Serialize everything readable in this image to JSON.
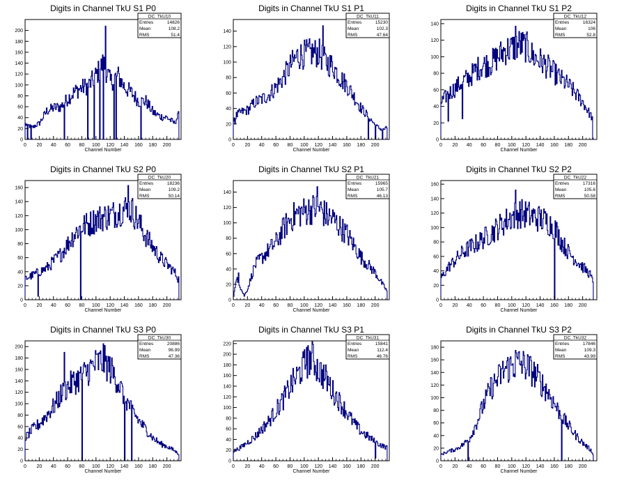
{
  "chart_data": [
    {
      "type": "histogram",
      "title": "Digits in Channel TkU S1 P0",
      "xlabel": "Channel Number",
      "ylabel": "",
      "xlim": [
        0,
        220
      ],
      "ylim": [
        0,
        220
      ],
      "xticks": [
        0,
        20,
        40,
        60,
        80,
        100,
        120,
        140,
        160,
        180,
        200
      ],
      "yticks": [
        0,
        20,
        40,
        60,
        80,
        100,
        120,
        140,
        160,
        180,
        200
      ],
      "stats": {
        "name": "DC_TkU10",
        "rows": [
          [
            "Entries",
            "14826"
          ],
          [
            "Mean",
            "108.2"
          ],
          [
            "RMS",
            "51.4"
          ]
        ]
      },
      "x": [
        0,
        10,
        20,
        30,
        40,
        50,
        60,
        70,
        80,
        90,
        100,
        110,
        120,
        130,
        140,
        150,
        160,
        170,
        180,
        190,
        200,
        210,
        216
      ],
      "values": [
        28,
        22,
        30,
        52,
        58,
        60,
        75,
        88,
        95,
        100,
        118,
        140,
        105,
        118,
        96,
        85,
        70,
        70,
        50,
        42,
        40,
        30,
        44
      ],
      "spikes": [
        [
          113,
          208
        ],
        [
          55,
          0
        ],
        [
          88,
          0
        ],
        [
          97,
          0
        ],
        [
          105,
          0
        ],
        [
          110,
          0
        ],
        [
          125,
          0
        ],
        [
          128,
          0
        ],
        [
          163,
          0
        ],
        [
          3,
          0
        ],
        [
          8,
          0
        ]
      ]
    },
    {
      "type": "histogram",
      "title": "Digits in Channel TkU S1 P1",
      "xlabel": "Channel Number",
      "ylabel": "",
      "xlim": [
        0,
        220
      ],
      "ylim": [
        0,
        155
      ],
      "xticks": [
        0,
        20,
        40,
        60,
        80,
        100,
        120,
        140,
        160,
        180,
        200
      ],
      "yticks": [
        0,
        20,
        40,
        60,
        80,
        100,
        120,
        140
      ],
      "stats": {
        "name": "DC_TkU11",
        "rows": [
          [
            "Entries",
            "15230"
          ],
          [
            "Mean",
            "102.3"
          ],
          [
            "RMS",
            "47.64"
          ]
        ]
      },
      "x": [
        0,
        10,
        20,
        30,
        40,
        50,
        60,
        70,
        80,
        90,
        100,
        110,
        120,
        130,
        140,
        150,
        160,
        170,
        180,
        190,
        200,
        210,
        216
      ],
      "values": [
        28,
        35,
        38,
        48,
        52,
        58,
        68,
        80,
        95,
        108,
        110,
        112,
        112,
        100,
        95,
        80,
        70,
        55,
        40,
        30,
        18,
        12,
        15
      ],
      "spikes": [
        [
          126,
          147
        ],
        [
          190,
          0
        ],
        [
          200,
          0
        ],
        [
          210,
          0
        ],
        [
          2,
          20
        ]
      ]
    },
    {
      "type": "histogram",
      "title": "Digits in Channel TkU S1 P2",
      "xlabel": "Channel Number",
      "ylabel": "",
      "xlim": [
        0,
        220
      ],
      "ylim": [
        0,
        145
      ],
      "xticks": [
        0,
        20,
        40,
        60,
        80,
        100,
        120,
        140,
        160,
        180,
        200
      ],
      "yticks": [
        0,
        20,
        40,
        60,
        80,
        100,
        120,
        140
      ],
      "stats": {
        "name": "DC_TkU12",
        "rows": [
          [
            "Entries",
            "16324"
          ],
          [
            "Mean",
            "106"
          ],
          [
            "RMS",
            "52.8"
          ]
        ]
      },
      "x": [
        0,
        10,
        20,
        30,
        40,
        50,
        60,
        70,
        80,
        90,
        100,
        110,
        120,
        130,
        140,
        150,
        160,
        170,
        180,
        190,
        200,
        210,
        214
      ],
      "values": [
        45,
        55,
        62,
        70,
        75,
        85,
        90,
        92,
        100,
        108,
        110,
        115,
        112,
        100,
        95,
        88,
        80,
        72,
        65,
        55,
        45,
        30,
        25
      ],
      "spikes": [
        [
          105,
          137
        ],
        [
          214,
          0
        ],
        [
          10,
          22
        ],
        [
          30,
          25
        ]
      ]
    },
    {
      "type": "histogram",
      "title": "Digits in Channel TkU S2 P0",
      "xlabel": "Channel Number",
      "ylabel": "",
      "xlim": [
        0,
        220
      ],
      "ylim": [
        0,
        170
      ],
      "xticks": [
        0,
        20,
        40,
        60,
        80,
        100,
        120,
        140,
        160,
        180,
        200
      ],
      "yticks": [
        0,
        20,
        40,
        60,
        80,
        100,
        120,
        140,
        160
      ],
      "stats": {
        "name": "DC_TkU20",
        "rows": [
          [
            "Entries",
            "18236"
          ],
          [
            "Mean",
            "109.2"
          ],
          [
            "RMS",
            "50.14"
          ]
        ]
      },
      "x": [
        0,
        10,
        20,
        30,
        40,
        50,
        60,
        70,
        80,
        90,
        100,
        110,
        120,
        130,
        140,
        150,
        160,
        170,
        180,
        190,
        200,
        210,
        216
      ],
      "values": [
        30,
        35,
        40,
        45,
        55,
        65,
        80,
        95,
        105,
        108,
        115,
        118,
        120,
        125,
        130,
        128,
        110,
        90,
        75,
        60,
        50,
        40,
        30
      ],
      "spikes": [
        [
          78,
          0
        ],
        [
          145,
          163
        ],
        [
          18,
          5
        ],
        [
          215,
          25
        ]
      ]
    },
    {
      "type": "histogram",
      "title": "Digits in Channel TkU S2 P1",
      "xlabel": "Channel Number",
      "ylabel": "",
      "xlim": [
        0,
        220
      ],
      "ylim": [
        0,
        155
      ],
      "xticks": [
        0,
        20,
        40,
        60,
        80,
        100,
        120,
        140,
        160,
        180,
        200
      ],
      "yticks": [
        0,
        20,
        40,
        60,
        80,
        100,
        120,
        140
      ],
      "stats": {
        "name": "DC_TkU21",
        "rows": [
          [
            "Entries",
            "15965"
          ],
          [
            "Mean",
            "105.7"
          ],
          [
            "RMS",
            "46.13"
          ]
        ]
      },
      "x": [
        0,
        5,
        10,
        15,
        20,
        30,
        40,
        50,
        60,
        70,
        80,
        90,
        100,
        110,
        120,
        130,
        140,
        150,
        160,
        170,
        180,
        190,
        200,
        210,
        216
      ],
      "values": [
        5,
        30,
        15,
        5,
        15,
        45,
        55,
        65,
        75,
        92,
        105,
        112,
        115,
        118,
        120,
        110,
        105,
        95,
        85,
        70,
        55,
        45,
        35,
        20,
        12
      ],
      "spikes": [
        [
          118,
          147
        ],
        [
          7,
          35
        ]
      ]
    },
    {
      "type": "histogram",
      "title": "Digits in Channel TkU S2 P2",
      "xlabel": "Channel Number",
      "ylabel": "",
      "xlim": [
        0,
        220
      ],
      "ylim": [
        0,
        165
      ],
      "xticks": [
        0,
        20,
        40,
        60,
        80,
        100,
        120,
        140,
        160,
        180,
        200
      ],
      "yticks": [
        0,
        20,
        40,
        60,
        80,
        100,
        120,
        140,
        160
      ],
      "stats": {
        "name": "DC_TkU22",
        "rows": [
          [
            "Entries",
            "17316"
          ],
          [
            "Mean",
            "105.6"
          ],
          [
            "RMS",
            "50.58"
          ]
        ]
      },
      "x": [
        0,
        10,
        20,
        30,
        40,
        50,
        60,
        70,
        80,
        90,
        100,
        110,
        120,
        130,
        140,
        150,
        160,
        170,
        180,
        190,
        200,
        210,
        214
      ],
      "values": [
        30,
        45,
        55,
        65,
        72,
        78,
        85,
        92,
        100,
        108,
        115,
        120,
        118,
        115,
        112,
        108,
        100,
        80,
        65,
        55,
        45,
        35,
        25
      ],
      "spikes": [
        [
          105,
          152
        ],
        [
          160,
          0
        ]
      ]
    },
    {
      "type": "histogram",
      "title": "Digits in Channel TkU S3 P0",
      "xlabel": "Channel Number",
      "ylabel": "",
      "xlim": [
        0,
        220
      ],
      "ylim": [
        0,
        210
      ],
      "xticks": [
        0,
        20,
        40,
        60,
        80,
        100,
        120,
        140,
        160,
        180,
        200
      ],
      "yticks": [
        0,
        20,
        40,
        60,
        80,
        100,
        120,
        140,
        160,
        180,
        200
      ],
      "stats": {
        "name": "DC_TkU30",
        "rows": [
          [
            "Entries",
            "20886"
          ],
          [
            "Mean",
            "96.99"
          ],
          [
            "RMS",
            "47.36"
          ]
        ]
      },
      "x": [
        0,
        10,
        20,
        30,
        40,
        50,
        60,
        70,
        80,
        90,
        100,
        110,
        120,
        130,
        140,
        150,
        160,
        170,
        180,
        190,
        200,
        210,
        216
      ],
      "values": [
        40,
        55,
        65,
        80,
        95,
        115,
        130,
        140,
        148,
        160,
        170,
        175,
        160,
        140,
        110,
        90,
        70,
        55,
        40,
        30,
        25,
        18,
        12
      ],
      "spikes": [
        [
          110,
          205
        ],
        [
          55,
          190
        ],
        [
          80,
          0
        ],
        [
          140,
          0
        ],
        [
          150,
          0
        ]
      ]
    },
    {
      "type": "histogram",
      "title": "Digits in Channel TkU S3 P1",
      "xlabel": "Channel Number",
      "ylabel": "",
      "xlim": [
        0,
        220
      ],
      "ylim": [
        0,
        225
      ],
      "xticks": [
        0,
        20,
        40,
        60,
        80,
        100,
        120,
        140,
        160,
        180,
        200
      ],
      "yticks": [
        0,
        20,
        40,
        60,
        80,
        100,
        120,
        140,
        160,
        180,
        200,
        220
      ],
      "stats": {
        "name": "DC_TkU31",
        "rows": [
          [
            "Entries",
            "15841"
          ],
          [
            "Mean",
            "112.4"
          ],
          [
            "RMS",
            "46.76"
          ]
        ]
      },
      "x": [
        0,
        10,
        20,
        30,
        40,
        50,
        60,
        70,
        80,
        90,
        100,
        110,
        120,
        130,
        140,
        150,
        160,
        170,
        180,
        190,
        200,
        210,
        216
      ],
      "values": [
        18,
        25,
        35,
        45,
        60,
        75,
        95,
        115,
        140,
        160,
        180,
        195,
        170,
        155,
        130,
        110,
        90,
        70,
        55,
        45,
        35,
        28,
        25
      ],
      "spikes": [
        [
          103,
          213
        ],
        [
          200,
          5
        ]
      ]
    },
    {
      "type": "histogram",
      "title": "Digits in Channel TkU S3 P2",
      "xlabel": "Channel Number",
      "ylabel": "",
      "xlim": [
        0,
        220
      ],
      "ylim": [
        0,
        190
      ],
      "xticks": [
        0,
        20,
        40,
        60,
        80,
        100,
        120,
        140,
        160,
        180,
        200
      ],
      "yticks": [
        0,
        20,
        40,
        60,
        80,
        100,
        120,
        140,
        160,
        180
      ],
      "stats": {
        "name": "DC_TkU32",
        "rows": [
          [
            "Entries",
            "17846"
          ],
          [
            "Mean",
            "109.3"
          ],
          [
            "RMS",
            "43.99"
          ]
        ]
      },
      "x": [
        0,
        10,
        20,
        30,
        40,
        50,
        60,
        70,
        80,
        90,
        100,
        110,
        120,
        130,
        140,
        150,
        160,
        170,
        180,
        190,
        200,
        210,
        214
      ],
      "values": [
        10,
        15,
        18,
        25,
        35,
        60,
        90,
        115,
        130,
        145,
        150,
        155,
        150,
        140,
        125,
        110,
        90,
        70,
        55,
        40,
        28,
        18,
        12
      ],
      "spikes": [
        [
          105,
          175
        ],
        [
          38,
          0
        ],
        [
          170,
          0
        ]
      ]
    }
  ]
}
